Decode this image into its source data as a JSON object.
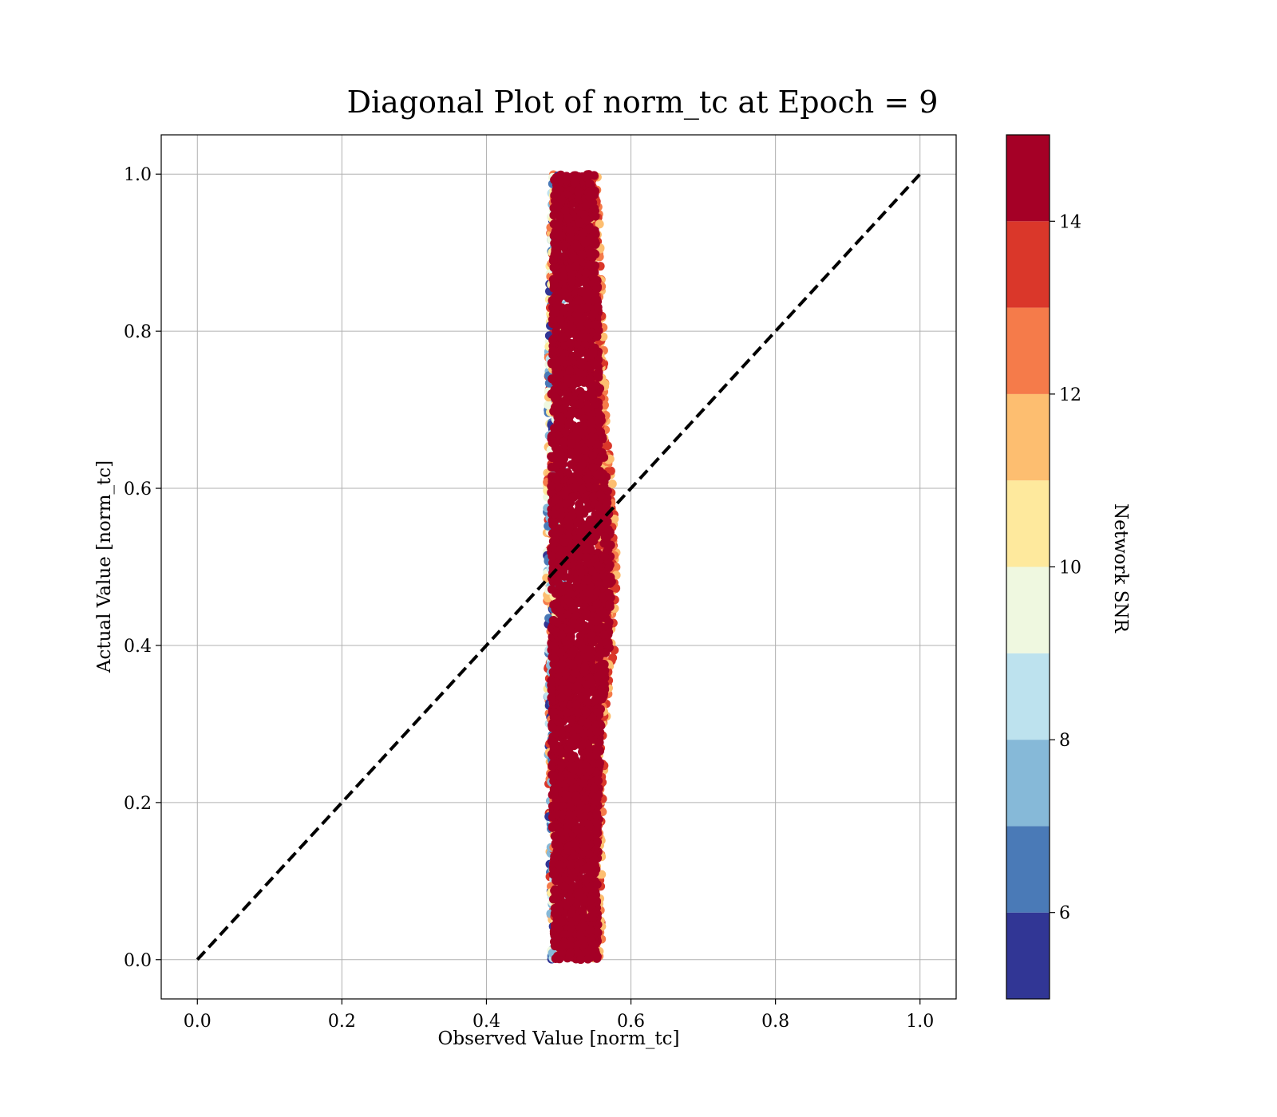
{
  "chart_data": {
    "type": "scatter",
    "title": "Diagonal Plot of norm_tc at Epoch = 9",
    "xlabel": "Observed Value [norm_tc]",
    "ylabel": "Actual Value [norm_tc]",
    "xlim": [
      -0.05,
      1.05
    ],
    "ylim": [
      -0.05,
      1.05
    ],
    "x_ticks": [
      "0.0",
      "0.2",
      "0.4",
      "0.6",
      "0.8",
      "1.0"
    ],
    "y_ticks": [
      "0.0",
      "0.2",
      "0.4",
      "0.6",
      "0.8",
      "1.0"
    ],
    "grid": true,
    "reference_line": {
      "style": "dashed",
      "color": "#000000",
      "from": [
        0,
        0
      ],
      "to": [
        1,
        1
      ]
    },
    "scatter_band": {
      "description_units": "data",
      "x_center_profile": [
        {
          "y": 0.0,
          "x_min": 0.49,
          "x_max": 0.56
        },
        {
          "y": 0.1,
          "x_min": 0.488,
          "x_max": 0.56
        },
        {
          "y": 0.2,
          "x_min": 0.486,
          "x_max": 0.562
        },
        {
          "y": 0.3,
          "x_min": 0.485,
          "x_max": 0.565
        },
        {
          "y": 0.4,
          "x_min": 0.484,
          "x_max": 0.578
        },
        {
          "y": 0.5,
          "x_min": 0.483,
          "x_max": 0.582
        },
        {
          "y": 0.6,
          "x_min": 0.484,
          "x_max": 0.575
        },
        {
          "y": 0.7,
          "x_min": 0.485,
          "x_max": 0.565
        },
        {
          "y": 0.8,
          "x_min": 0.486,
          "x_max": 0.562
        },
        {
          "y": 0.9,
          "x_min": 0.488,
          "x_max": 0.558
        },
        {
          "y": 1.0,
          "x_min": 0.49,
          "x_max": 0.555
        }
      ],
      "dominant_color": "#a50026",
      "edge_colors": [
        "#313695",
        "#4a7ab7",
        "#86b9d8",
        "#bde2ee",
        "#eff8e0",
        "#fee99d",
        "#fdbe70",
        "#f57b4a",
        "#da372a"
      ]
    },
    "colorbar": {
      "label": "Network SNR",
      "range": [
        5,
        15
      ],
      "tick_values": [
        6,
        8,
        10,
        12,
        14
      ],
      "tick_labels": [
        "6",
        "8",
        "10",
        "12",
        "14"
      ],
      "levels": [
        {
          "from": 5,
          "to": 6,
          "color": "#313695"
        },
        {
          "from": 6,
          "to": 7,
          "color": "#4a7ab7"
        },
        {
          "from": 7,
          "to": 8,
          "color": "#86b9d8"
        },
        {
          "from": 8,
          "to": 9,
          "color": "#bde2ee"
        },
        {
          "from": 9,
          "to": 10,
          "color": "#eff8e0"
        },
        {
          "from": 10,
          "to": 11,
          "color": "#fee99d"
        },
        {
          "from": 11,
          "to": 12,
          "color": "#fdbe70"
        },
        {
          "from": 12,
          "to": 13,
          "color": "#f57b4a"
        },
        {
          "from": 13,
          "to": 14,
          "color": "#da372a"
        },
        {
          "from": 14,
          "to": 15,
          "color": "#a50026"
        }
      ]
    }
  }
}
